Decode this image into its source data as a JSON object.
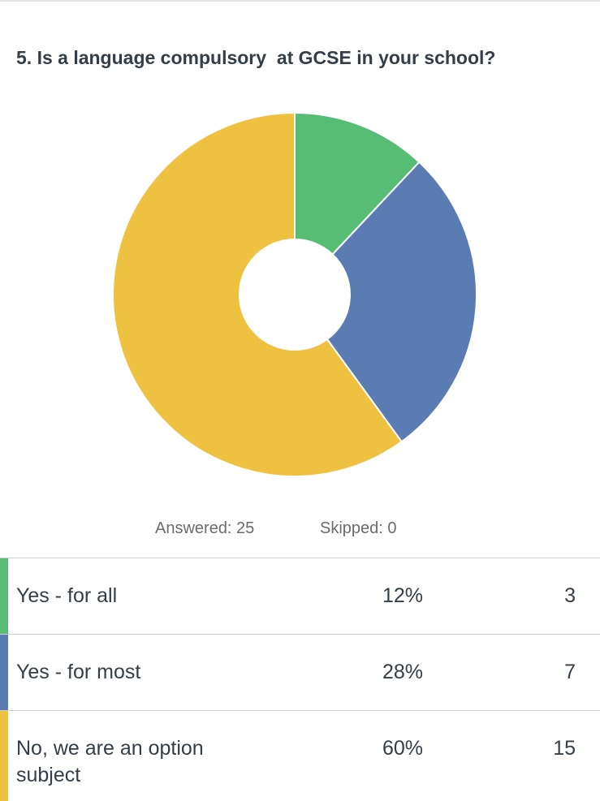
{
  "chart_data": {
    "type": "pie",
    "title": "5. Is a language compulsory  at GCSE in your school?",
    "categories": [
      "Yes - for all",
      "Yes - for most",
      "No, we are an option subject"
    ],
    "values": [
      12,
      28,
      60
    ],
    "value_labels": [
      "12%",
      "28%",
      "60%"
    ],
    "counts": [
      3,
      7,
      15
    ],
    "colors": [
      "#57bd74",
      "#5a7cb3",
      "#efc140"
    ],
    "footer": [
      "Answered: 25",
      "Skipped: 0"
    ]
  }
}
